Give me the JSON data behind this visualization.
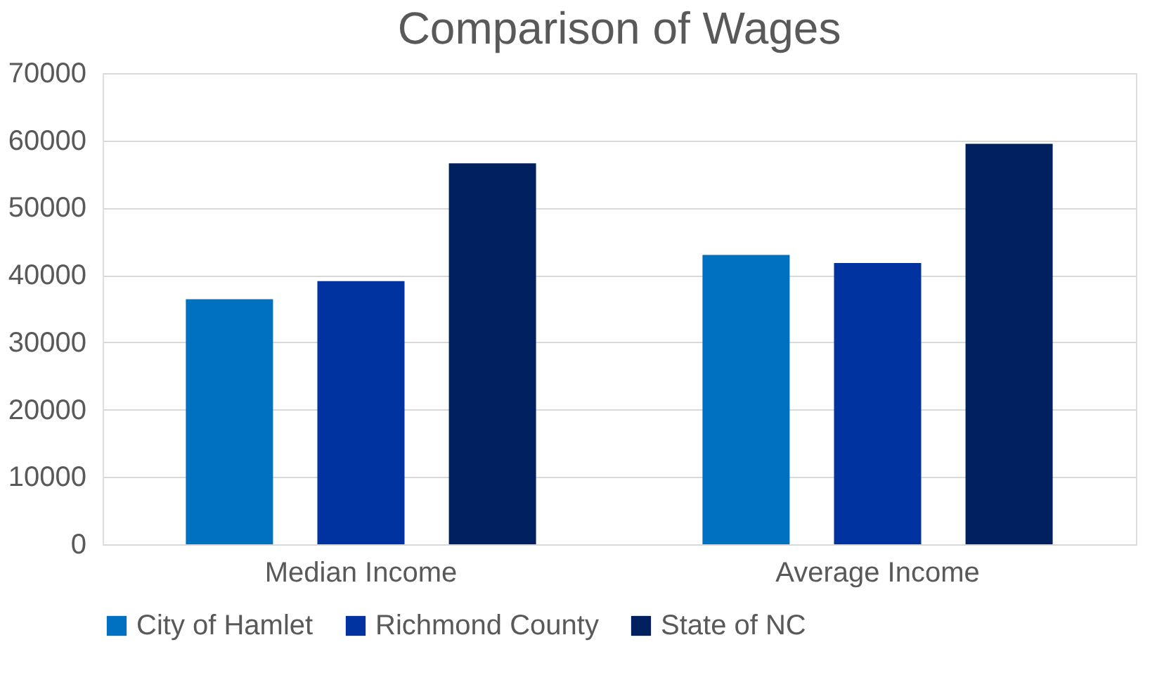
{
  "chart_data": {
    "type": "bar",
    "title": "Comparison of Wages",
    "categories": [
      "Median Income",
      "Average Income"
    ],
    "series": [
      {
        "name": "City of Hamlet",
        "color": "#0070c0",
        "values": [
          36400,
          43000
        ]
      },
      {
        "name": "Richmond County",
        "color": "#0033a0",
        "values": [
          39100,
          41800
        ]
      },
      {
        "name": "State of NC",
        "color": "#002060",
        "values": [
          56600,
          59500
        ]
      }
    ],
    "ylim": [
      0,
      70000
    ],
    "yticks": [
      0,
      10000,
      20000,
      30000,
      40000,
      50000,
      60000,
      70000
    ],
    "grid": "y",
    "legend": "bottom"
  }
}
